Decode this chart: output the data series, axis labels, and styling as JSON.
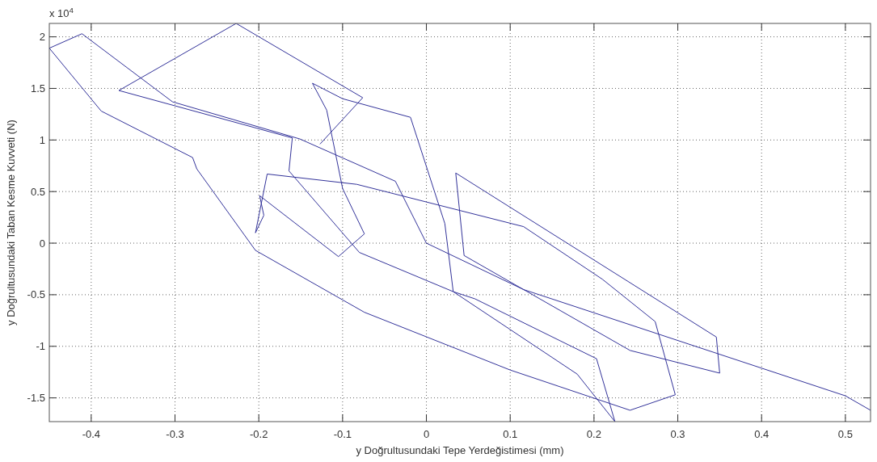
{
  "chart_data": {
    "type": "line",
    "xlabel": "y Doğrultusundaki Tepe Yerdeğistimesi (mm)",
    "ylabel": "y Doğrultusundaki Taban Kesme Kuvveti (N)",
    "annotations": [
      "x 10$^{4}$"
    ],
    "xlim": [
      -0.45,
      0.53
    ],
    "ylim": [
      -1.73,
      2.13
    ],
    "xticks": [
      -0.4,
      -0.3,
      -0.2,
      -0.1,
      0,
      0.1,
      0.2,
      0.3,
      0.4,
      0.5
    ],
    "yticks": [
      -1.5,
      -1,
      -0.5,
      0,
      0.5,
      1,
      1.5,
      2
    ],
    "grid": true,
    "line_style": "solid",
    "series": [
      {
        "color": "#33339a",
        "x": [
          0.225,
          0.203,
          0.058,
          0.032,
          0.022,
          -0.019,
          -0.1,
          -0.136,
          -0.119,
          -0.1,
          -0.074,
          -0.105,
          -0.199,
          -0.194,
          -0.204,
          -0.19,
          -0.083,
          0.116,
          0.21,
          0.273,
          0.297,
          0.243,
          0.1,
          -0.074,
          -0.204,
          -0.274,
          -0.279,
          -0.388,
          -0.45,
          -0.411,
          -0.303,
          -0.151,
          -0.037,
          0.0,
          0.116,
          0.243,
          0.35,
          0.346,
          0.035,
          0.045,
          0.116,
          0.5,
          0.53
        ],
        "values": [
          -1.73,
          -1.12,
          -0.54,
          -0.47,
          0.19,
          1.22,
          1.4,
          1.55,
          1.29,
          0.53,
          0.09,
          -0.13,
          0.46,
          0.27,
          0.1,
          0.67,
          0.57,
          0.16,
          -0.35,
          -0.76,
          -1.47,
          -1.62,
          -1.23,
          -0.67,
          -0.07,
          0.72,
          0.83,
          1.28,
          1.89,
          2.03,
          1.37,
          1.01,
          0.6,
          0.0,
          -0.45,
          -1.04,
          -1.26,
          -0.91,
          0.68,
          -0.12,
          -0.45,
          -1.48,
          -1.62
        ]
      },
      {
        "color": "#33339a",
        "x": [
          -0.127,
          -0.076,
          -0.227,
          -0.367,
          -0.16,
          -0.164,
          -0.08,
          0.032,
          0.18,
          0.225
        ],
        "values": [
          0.96,
          1.41,
          2.13,
          1.48,
          1.02,
          0.7,
          -0.09,
          -0.47,
          -1.27,
          -1.73
        ]
      }
    ]
  }
}
